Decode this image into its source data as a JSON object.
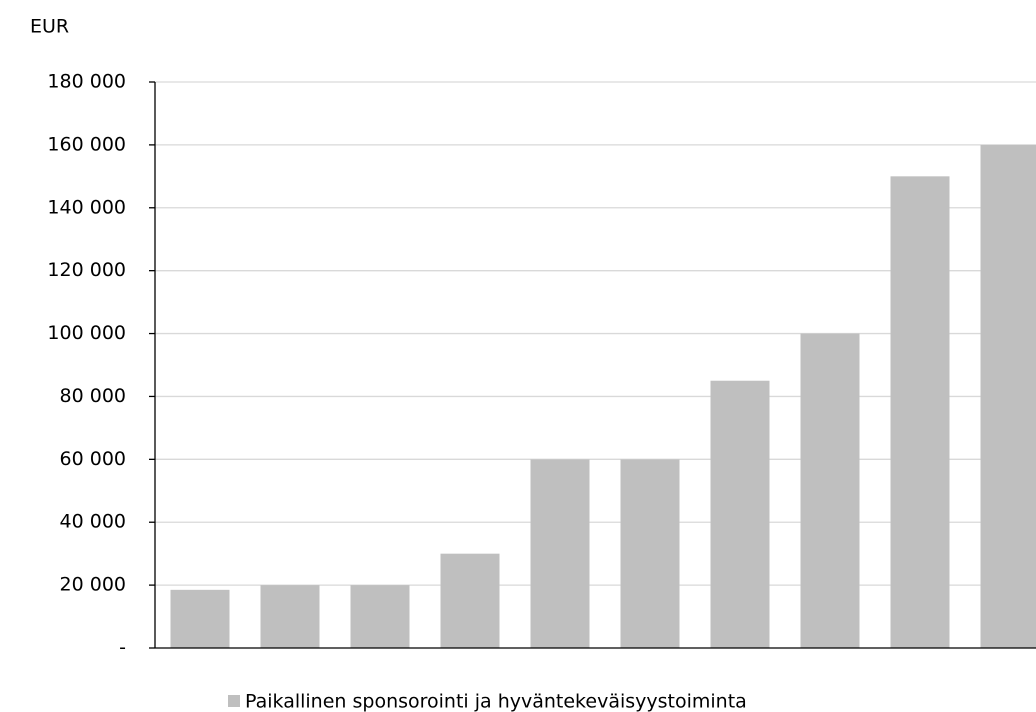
{
  "chart_data": {
    "type": "bar",
    "y_axis_label": "EUR",
    "categories": [
      null,
      null,
      null,
      null,
      null,
      null,
      null,
      null,
      null,
      null
    ],
    "series": [
      {
        "name": "Paikallinen sponsorointi ja hyväntekeväisyystoiminta",
        "color": "#bfbfbf",
        "values": [
          18500,
          20000,
          20000,
          30000,
          60000,
          60000,
          85000,
          100000,
          150000,
          160000
        ]
      }
    ],
    "ylim": [
      0,
      180000
    ],
    "yticks": [
      {
        "value": 0,
        "label": "-"
      },
      {
        "value": 20000,
        "label": "20 000"
      },
      {
        "value": 40000,
        "label": "40 000"
      },
      {
        "value": 60000,
        "label": "60 000"
      },
      {
        "value": 80000,
        "label": "80 000"
      },
      {
        "value": 100000,
        "label": "100 000"
      },
      {
        "value": 120000,
        "label": "120 000"
      },
      {
        "value": 140000,
        "label": "140 000"
      },
      {
        "value": 160000,
        "label": "160 000"
      },
      {
        "value": 180000,
        "label": "180 000"
      }
    ],
    "grid": true,
    "legend": "bottom"
  }
}
